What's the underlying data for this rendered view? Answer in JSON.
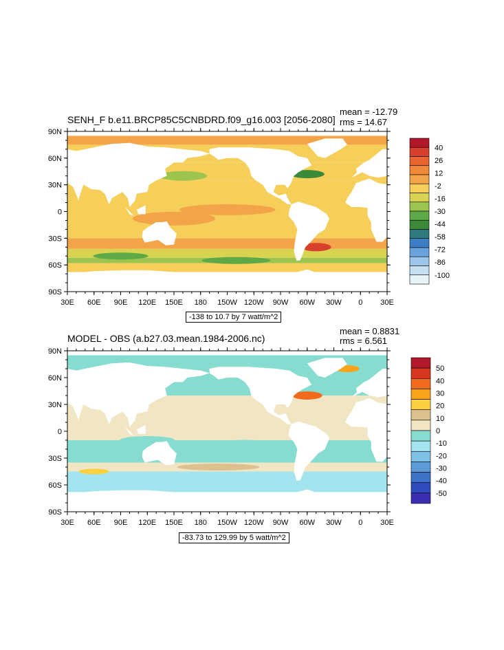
{
  "panels": [
    {
      "title": "SENH_F b.e11.BRCP85C5CNBDRD.f09_g16.003 [2056-2080]",
      "mean_text": "mean = -12.79",
      "rms_text": "rms = 14.67",
      "contour_info": "-138 to 10.7 by 7 watt/m^2",
      "x_ticks": [
        "30E",
        "60E",
        "90E",
        "120E",
        "150E",
        "180",
        "150W",
        "120W",
        "90W",
        "60W",
        "30W",
        "0",
        "30E"
      ],
      "y_ticks": [
        "90N",
        "60N",
        "30N",
        "0",
        "30S",
        "60S",
        "90S"
      ],
      "colorbar_labels": [
        "40",
        "26",
        "12",
        "-2",
        "-16",
        "-30",
        "-44",
        "-58",
        "-72",
        "-86",
        "-100"
      ],
      "colorbar_colors": [
        "#b2182b",
        "#d6402c",
        "#e8652f",
        "#f08a3a",
        "#f4a448",
        "#f6cf5a",
        "#d8d452",
        "#9cc44e",
        "#5ea845",
        "#3b8a3a",
        "#2f7a7d",
        "#3d7fc4",
        "#6aa3dc",
        "#9cc6ea",
        "#c6e0f2",
        "#e6f3f8"
      ],
      "chart_data": {
        "type": "heatmap",
        "xlim": [
          "30E",
          "30E"
        ],
        "ylim": [
          "90S",
          "90N"
        ],
        "zrange": [
          -138,
          10.7
        ],
        "units": "watt/m^2"
      }
    },
    {
      "title": "MODEL - OBS (a.b27.03.mean.1984-2006.nc)",
      "mean_text": "mean = 0.8831",
      "rms_text": "rms = 6.561",
      "contour_info": "-83.73 to 129.99 by 5 watt/m^2",
      "x_ticks": [
        "30E",
        "60E",
        "90E",
        "120E",
        "150E",
        "180",
        "150W",
        "120W",
        "90W",
        "60W",
        "30W",
        "0",
        "30E"
      ],
      "y_ticks": [
        "90N",
        "60N",
        "30N",
        "0",
        "30S",
        "60S",
        "90S"
      ],
      "colorbar_labels": [
        "50",
        "40",
        "30",
        "20",
        "10",
        "0",
        "-10",
        "-20",
        "-30",
        "-40",
        "-50"
      ],
      "colorbar_colors": [
        "#b2182b",
        "#d9361f",
        "#f26b1d",
        "#f9a31b",
        "#fbd040",
        "#dcc08f",
        "#f1e6c4",
        "#86dccf",
        "#a4e4ef",
        "#7fc2e6",
        "#5d9ad8",
        "#3d72c9",
        "#2f4bbd",
        "#3a2fb0"
      ],
      "chart_data": {
        "type": "heatmap",
        "xlim": [
          "30E",
          "30E"
        ],
        "ylim": [
          "90S",
          "90N"
        ],
        "zrange": [
          -83.73,
          129.99
        ],
        "units": "watt/m^2"
      }
    }
  ]
}
